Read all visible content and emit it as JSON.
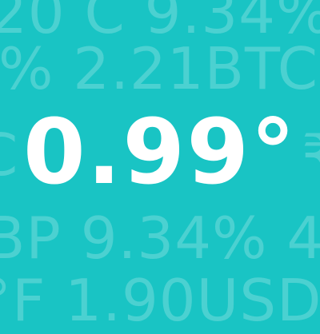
{
  "background_color": "#19c4c4",
  "main_value": "0.99°",
  "background_text": {
    "line1": "20 C 9.34%",
    "line2": "% 2.21BTC",
    "line3_left": "C",
    "line3_right": "₹",
    "line4": "BP 9.34% 4",
    "line5": "°F 1.90USD"
  }
}
